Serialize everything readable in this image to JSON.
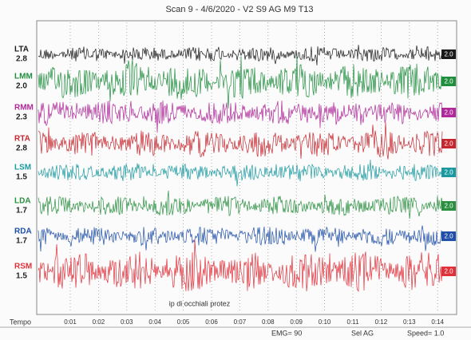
{
  "header": {
    "title": "Scan 9 - 4/6/2020 - V2   S9 AG   M9   T13"
  },
  "channels": [
    {
      "name": "LTA",
      "gain": "2.8",
      "tag": "2.0",
      "color": "#1a1a1a"
    },
    {
      "name": "LMM",
      "gain": "2.0",
      "tag": "2.0",
      "color": "#1f8f3e"
    },
    {
      "name": "RMM",
      "gain": "2.3",
      "tag": "2.0",
      "color": "#b0289a"
    },
    {
      "name": "RTA",
      "gain": "2.8",
      "tag": "2.0",
      "color": "#c8262e"
    },
    {
      "name": "LSM",
      "gain": "1.5",
      "tag": "2.0",
      "color": "#1a9aa0"
    },
    {
      "name": "LDA",
      "gain": "1.7",
      "tag": "2.0",
      "color": "#2a9040"
    },
    {
      "name": "RDA",
      "gain": "1.7",
      "tag": "2.0",
      "color": "#1f4fa8"
    },
    {
      "name": "RSM",
      "gain": "1.5",
      "tag": "2.0",
      "color": "#e0303a"
    }
  ],
  "annotation": "ip di occhiali protez",
  "time_axis": {
    "label": "Tempo",
    "ticks": [
      "0:01",
      "0:02",
      "0:03",
      "0:04",
      "0:05",
      "0:06",
      "0:07",
      "0:08",
      "0:09",
      "0:10",
      "0:11",
      "0:12",
      "0:13",
      "0:14"
    ]
  },
  "footer": {
    "emg": "EMG= 90",
    "sel": "Sel AG",
    "speed": "Speed= 1.0"
  }
}
